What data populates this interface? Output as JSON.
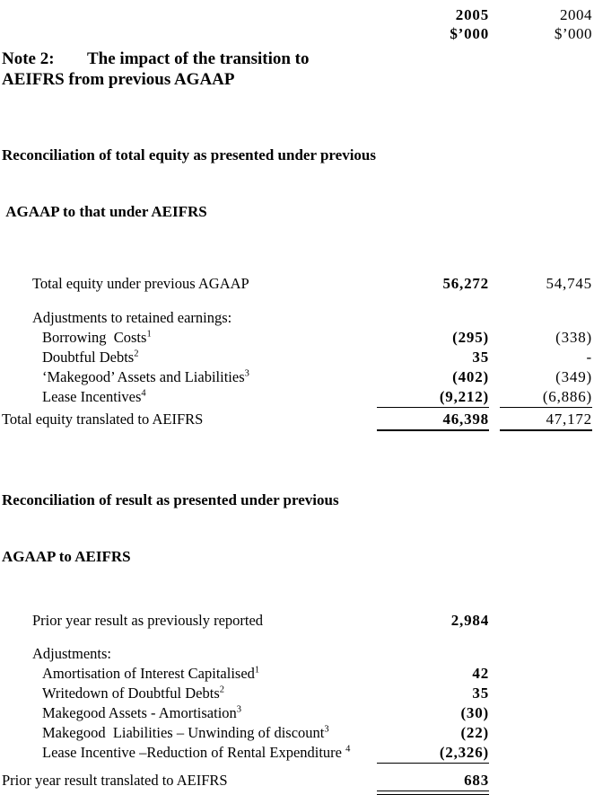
{
  "colors": {
    "text": "#000000",
    "background": "#ffffff"
  },
  "header": {
    "col2005": {
      "year": "2005",
      "unit": "$’000"
    },
    "col2004": {
      "year": "2004",
      "unit": "$’000"
    }
  },
  "note": {
    "label": "Note 2:",
    "title_line1": "The impact of the transition to",
    "title_line2": "AEIFRS from previous AGAAP"
  },
  "sections": [
    {
      "heading_line1": "Reconciliation of total equity as presented under previous",
      "heading_line2": " AGAAP to that under AEIFRS",
      "rows": [
        {
          "label": "Total equity under previous AGAAP",
          "v2005": "56,272",
          "v2004": "54,745"
        },
        {
          "label": "Adjustments to retained earnings:"
        },
        {
          "label": "Borrowing  Costs",
          "sup": "1",
          "v2005": "(295)",
          "v2004": "(338)"
        },
        {
          "label": "Doubtful Debts",
          "sup": "2",
          "v2005": "35",
          "v2004": "-"
        },
        {
          "label": "‘Makegood’ Assets and Liabilities",
          "sup": "3",
          "v2005": "(402)",
          "v2004": "(349)"
        },
        {
          "label": "Lease Incentives",
          "sup": "4",
          "v2005": "(9,212)",
          "v2004": "(6,886)"
        },
        {
          "label": "Total equity translated to AEIFRS",
          "v2005": "46,398",
          "v2004": "47,172"
        }
      ]
    },
    {
      "heading_line1": "Reconciliation of result as presented under previous",
      "heading_line2": "AGAAP to AEIFRS",
      "rows": [
        {
          "label": "Prior year result as previously reported",
          "v2005": "2,984"
        },
        {
          "label": "Adjustments:"
        },
        {
          "label": "Amortisation of Interest Capitalised",
          "sup": "1",
          "v2005": "42"
        },
        {
          "label": "Writedown of Doubtful Debts",
          "sup": "2",
          "v2005": "35"
        },
        {
          "label": "Makegood Assets - Amortisation",
          "sup": "3",
          "v2005": "(30)"
        },
        {
          "label": "Makegood  Liabilities – Unwinding of discount",
          "sup": "3",
          "v2005": "(22)"
        },
        {
          "label": "Lease Incentive –Reduction of Rental Expenditure ",
          "sup": "4",
          "v2005": "(2,326)"
        },
        {
          "label": "Prior year result translated to AEIFRS",
          "v2005": "683"
        }
      ]
    }
  ]
}
